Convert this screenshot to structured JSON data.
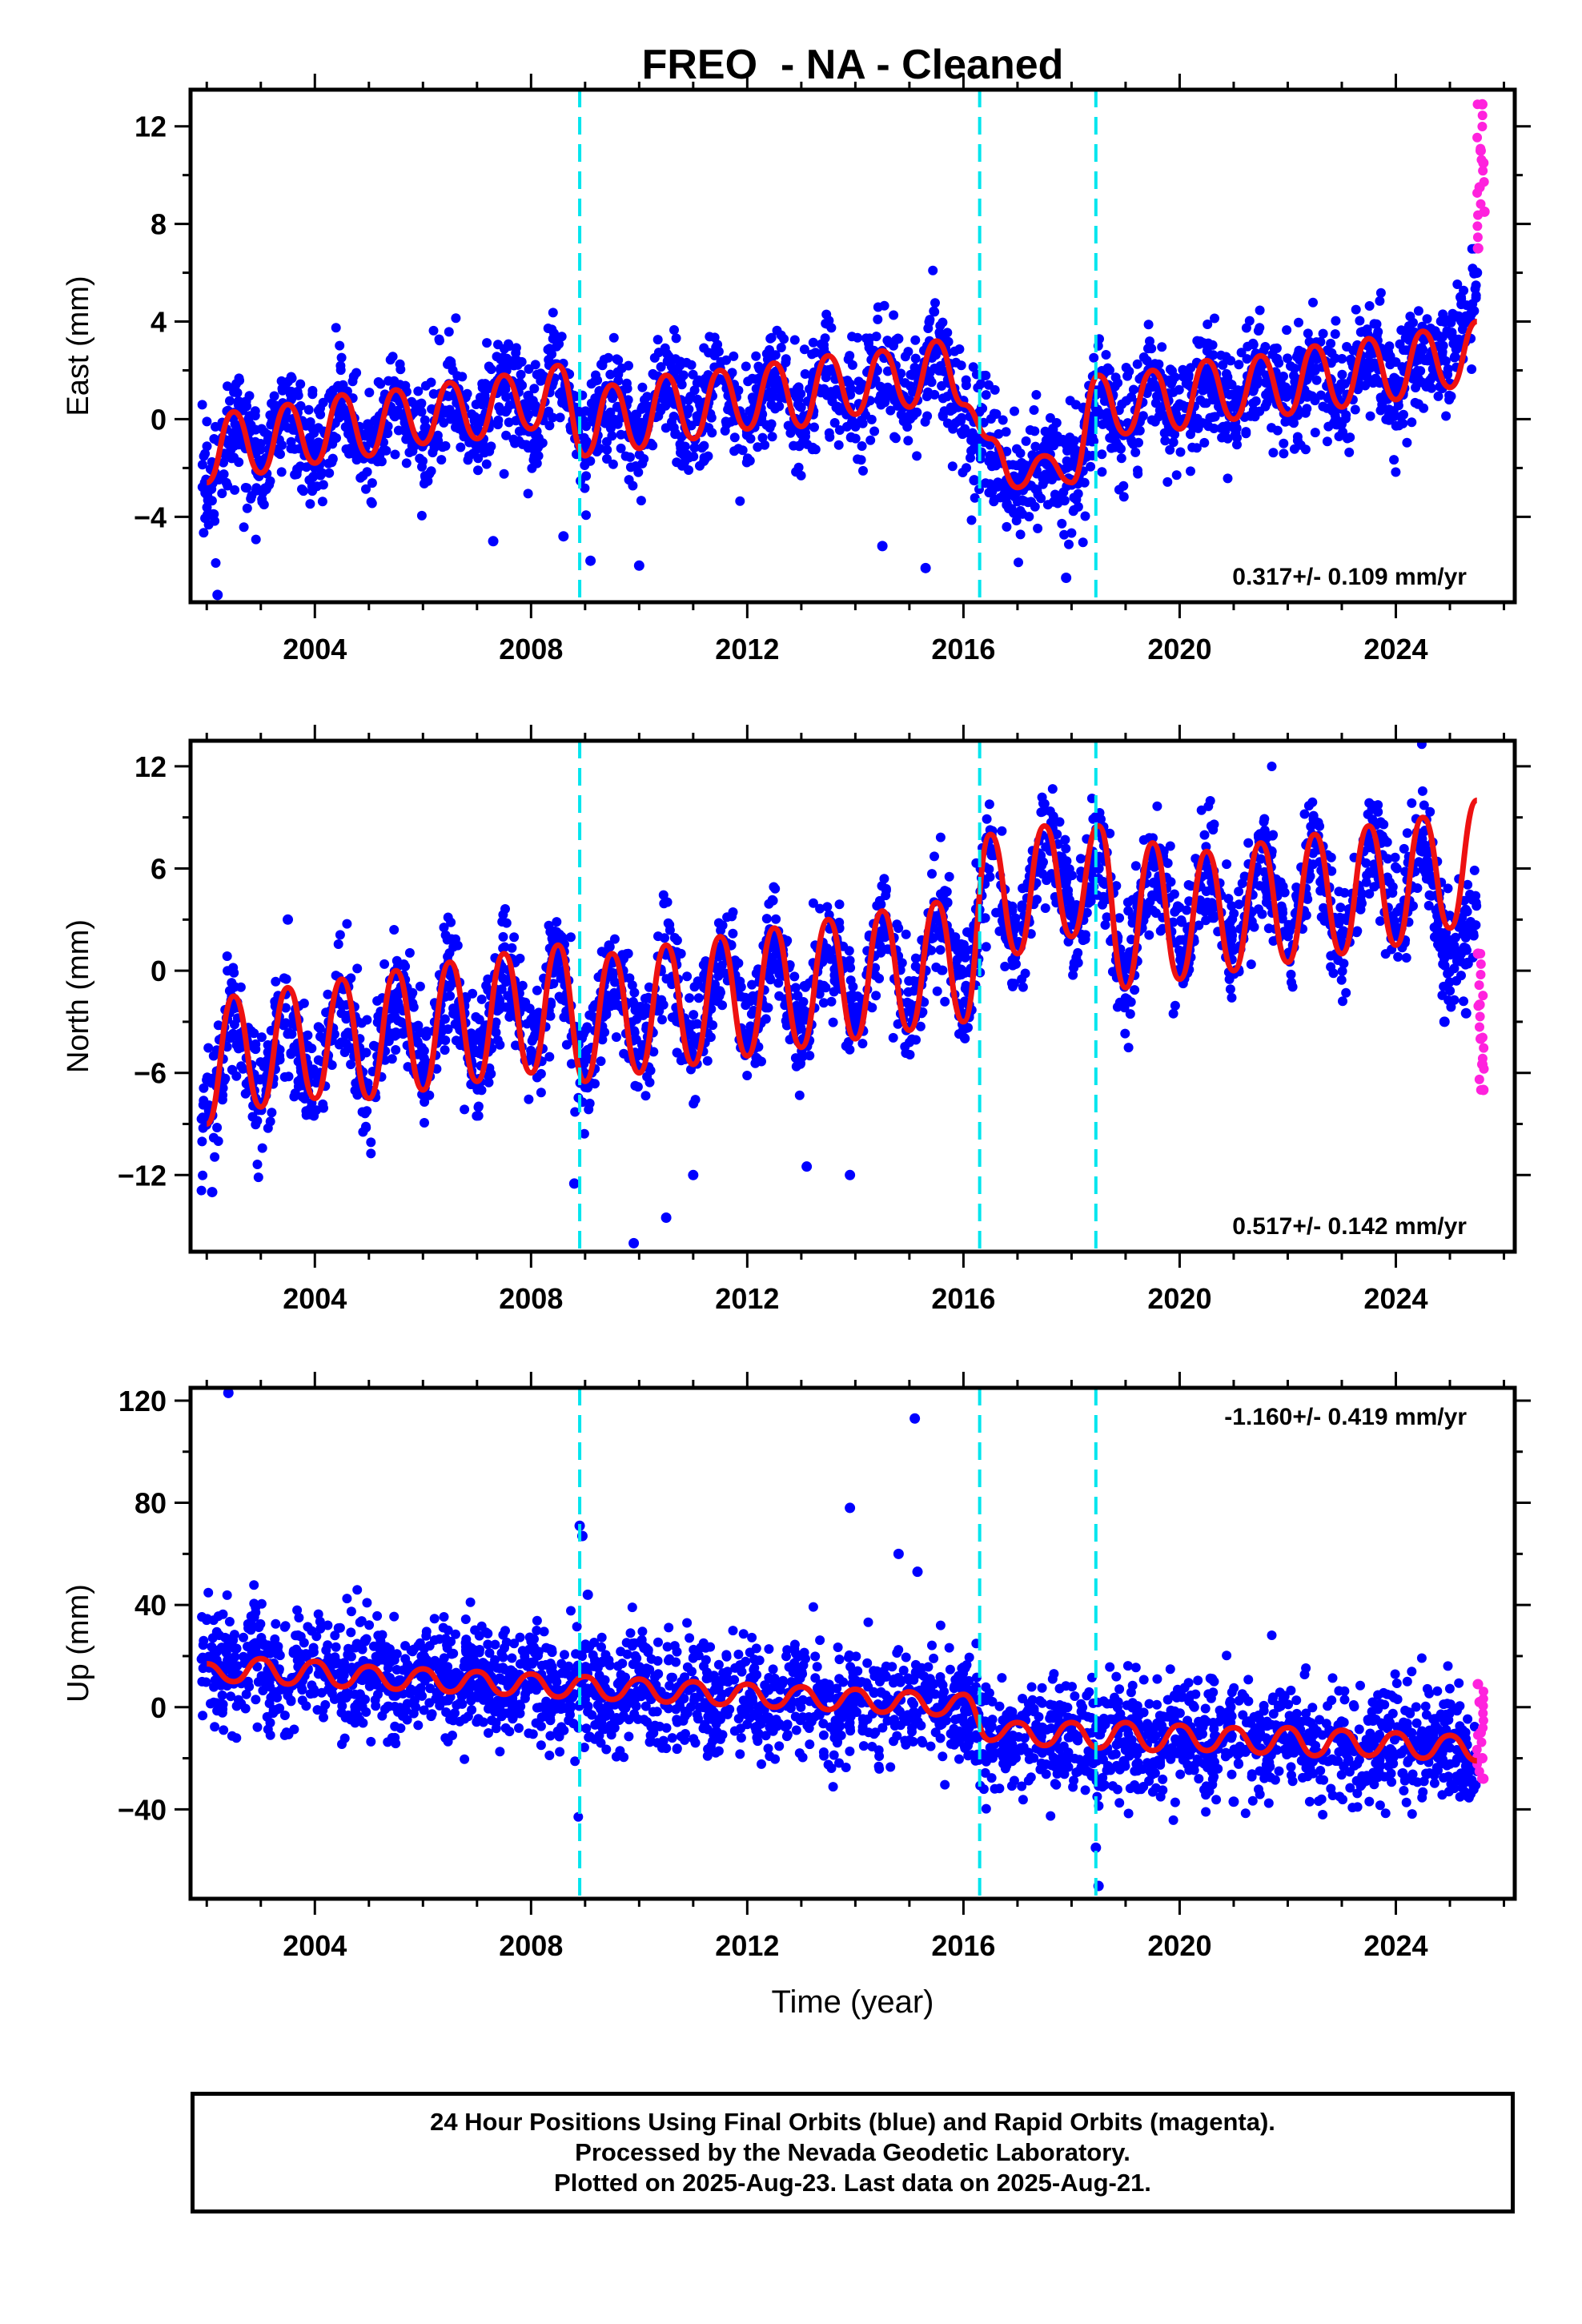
{
  "figure_title": "FREO  - NA - Cleaned",
  "x_axis_label": "Time (year)",
  "footer_lines": [
    "24 Hour Positions Using Final Orbits (blue) and Rapid Orbits (magenta).",
    "Processed by the Nevada Geodetic Laboratory.",
    "Plotted on 2025-Aug-23. Last data on 2025-Aug-21."
  ],
  "colors": {
    "final_orbits": "#0000ff",
    "rapid_orbits": "#ff22dd",
    "model_fit": "#ee1111",
    "equipment_change": "#00e5ee"
  },
  "chart_data": [
    {
      "type": "scatter",
      "title": "FREO  - NA - Cleaned",
      "ylabel": "East (mm)",
      "xlim": [
        2001.7,
        2026.2
      ],
      "ylim": [
        -7.5,
        13.5
      ],
      "yticks": [
        12,
        8,
        4,
        0,
        -4
      ],
      "ytick_labels": [
        "12",
        "8",
        "4",
        "0",
        "−4"
      ],
      "xticks": [
        2004,
        2008,
        2012,
        2016,
        2020,
        2024
      ],
      "xtick_labels": [
        "2004",
        "2008",
        "2012",
        "2016",
        "2020",
        "2024"
      ],
      "velocity_label": "0.317+/- 0.109 mm/yr",
      "velocity_label_position": "bottom-right",
      "equipment_changes": [
        2008.9,
        2016.3,
        2018.45
      ],
      "model_fit": {
        "x": [
          2002.0,
          2002.5,
          2003.0,
          2003.5,
          2004.0,
          2004.5,
          2005.0,
          2005.5,
          2006.0,
          2006.5,
          2007.0,
          2007.5,
          2008.0,
          2008.5,
          2009.0,
          2009.5,
          2010.0,
          2010.5,
          2011.0,
          2011.5,
          2012.0,
          2012.5,
          2013.0,
          2013.5,
          2014.0,
          2014.5,
          2015.0,
          2015.5,
          2016.0,
          2016.5,
          2017.0,
          2017.5,
          2018.0,
          2018.5,
          2019.0,
          2019.5,
          2020.0,
          2020.5,
          2021.0,
          2021.5,
          2022.0,
          2022.5,
          2023.0,
          2023.5,
          2024.0,
          2024.5,
          2025.0,
          2025.5
        ],
        "y": [
          -2.6,
          0.3,
          -2.2,
          0.6,
          -1.8,
          1.0,
          -1.5,
          1.2,
          -1.0,
          1.5,
          -0.8,
          1.8,
          -0.4,
          2.2,
          -1.5,
          1.4,
          -1.2,
          1.8,
          -0.8,
          2.0,
          -0.4,
          2.3,
          -0.3,
          2.6,
          0.2,
          2.8,
          0.5,
          3.2,
          0.6,
          -0.8,
          -2.8,
          -1.5,
          -2.6,
          1.8,
          -0.6,
          2.0,
          -0.4,
          2.4,
          0.0,
          2.6,
          0.2,
          3.0,
          0.5,
          3.3,
          0.8,
          3.6,
          1.3,
          4.0
        ]
      },
      "final_orbits": {
        "x": [
          2002.1,
          2002.4,
          2002.7,
          2003.0,
          2003.3,
          2003.6,
          2003.9,
          2004.2,
          2004.5,
          2004.8,
          2005.1,
          2005.4,
          2005.7,
          2006.0,
          2006.3,
          2006.6,
          2006.9,
          2007.2,
          2007.5,
          2007.8,
          2008.1,
          2008.4,
          2008.7,
          2009.0,
          2009.3,
          2009.6,
          2009.9,
          2010.2,
          2010.5,
          2010.8,
          2011.1,
          2011.4,
          2011.7,
          2012.0,
          2012.3,
          2012.6,
          2012.9,
          2013.2,
          2013.5,
          2013.8,
          2014.1,
          2014.4,
          2014.7,
          2015.0,
          2015.3,
          2015.6,
          2015.9,
          2016.2,
          2016.5,
          2016.8,
          2017.1,
          2017.4,
          2017.7,
          2018.0,
          2018.3,
          2018.6,
          2018.9,
          2019.2,
          2019.5,
          2019.8,
          2020.1,
          2020.4,
          2020.7,
          2021.0,
          2021.3,
          2021.6,
          2021.9,
          2022.2,
          2022.5,
          2022.8,
          2023.1,
          2023.4,
          2023.7,
          2024.0,
          2024.3,
          2024.6,
          2024.9,
          2025.2,
          2025.5
        ],
        "y": [
          -2.5,
          -1.0,
          -0.5,
          -2.0,
          -0.5,
          0.0,
          -1.5,
          -1.0,
          0.5,
          -1.5,
          -1.0,
          0.5,
          -0.5,
          -1.0,
          0.5,
          1.0,
          -0.5,
          0.0,
          1.5,
          0.0,
          -0.5,
          1.5,
          0.5,
          -1.0,
          0.5,
          0.5,
          -0.5,
          0.5,
          1.5,
          0.0,
          0.0,
          1.5,
          0.5,
          -0.5,
          1.0,
          1.5,
          0.0,
          1.0,
          2.0,
          0.5,
          0.5,
          2.0,
          1.0,
          0.5,
          2.0,
          2.0,
          0.5,
          -2.5,
          -1.5,
          -2.5,
          -2.0,
          -1.5,
          -2.0,
          -2.5,
          -1.5,
          1.0,
          -0.5,
          0.0,
          1.5,
          -0.5,
          0.0,
          1.5,
          1.0,
          0.5,
          1.5,
          1.5,
          0.5,
          1.0,
          2.0,
          1.0,
          1.0,
          2.0,
          1.5,
          1.0,
          2.5,
          1.5,
          4.0,
          5.0,
          6.0
        ],
        "outliers_x": [
          2002.2,
          2007.3,
          2008.6,
          2009.1,
          2010.0,
          2014.5,
          2015.3,
          2017.9
        ],
        "outliers_y": [
          -7.2,
          -5.0,
          -4.8,
          -5.8,
          -6.0,
          -5.2,
          -6.1,
          -6.5
        ]
      },
      "rapid_orbits": {
        "x": [
          2025.52,
          2025.55,
          2025.57,
          2025.6,
          2025.62,
          2025.64
        ],
        "y": [
          7.0,
          9.5,
          11.0,
          12.9,
          10.5,
          8.5
        ]
      }
    },
    {
      "type": "scatter",
      "ylabel": "North (mm)",
      "xlim": [
        2001.7,
        2026.2
      ],
      "ylim": [
        -16.5,
        13.5
      ],
      "yticks": [
        12,
        6,
        0,
        -6,
        -12
      ],
      "ytick_labels": [
        "12",
        "6",
        "0",
        "−6",
        "−12"
      ],
      "xticks": [
        2004,
        2008,
        2012,
        2016,
        2020,
        2024
      ],
      "xtick_labels": [
        "2004",
        "2008",
        "2012",
        "2016",
        "2020",
        "2024"
      ],
      "velocity_label": "0.517+/- 0.142 mm/yr",
      "velocity_label_position": "bottom-right",
      "equipment_changes": [
        2008.9,
        2016.3,
        2018.45
      ],
      "model_fit": {
        "x": [
          2002.0,
          2002.5,
          2003.0,
          2003.5,
          2004.0,
          2004.5,
          2005.0,
          2005.5,
          2006.0,
          2006.5,
          2007.0,
          2007.5,
          2008.0,
          2008.5,
          2009.0,
          2009.5,
          2010.0,
          2010.5,
          2011.0,
          2011.5,
          2012.0,
          2012.5,
          2013.0,
          2013.5,
          2014.0,
          2014.5,
          2015.0,
          2015.5,
          2016.0,
          2016.5,
          2017.0,
          2017.5,
          2018.0,
          2018.5,
          2019.0,
          2019.5,
          2020.0,
          2020.5,
          2021.0,
          2021.5,
          2022.0,
          2022.5,
          2023.0,
          2023.5,
          2024.0,
          2024.5,
          2025.0,
          2025.5
        ],
        "y": [
          -9.0,
          -1.5,
          -8.0,
          -1.0,
          -7.5,
          -0.5,
          -7.5,
          0.0,
          -7.0,
          0.5,
          -6.5,
          1.0,
          -6.0,
          1.5,
          -6.5,
          1.0,
          -6.0,
          1.5,
          -5.5,
          2.0,
          -5.0,
          2.5,
          -4.5,
          3.0,
          -4.0,
          3.5,
          -3.5,
          4.0,
          -3.0,
          8.0,
          1.0,
          8.5,
          2.0,
          8.5,
          -1.0,
          7.5,
          -0.5,
          7.0,
          0.0,
          7.5,
          0.5,
          8.0,
          1.0,
          8.5,
          1.5,
          9.0,
          2.5,
          10.0
        ]
      },
      "final_orbits": {
        "x": [
          2002.1,
          2002.5,
          2002.9,
          2003.3,
          2003.7,
          2004.1,
          2004.5,
          2004.9,
          2005.3,
          2005.7,
          2006.1,
          2006.5,
          2006.9,
          2007.3,
          2007.7,
          2008.1,
          2008.5,
          2008.9,
          2009.3,
          2009.7,
          2010.1,
          2010.5,
          2010.9,
          2011.3,
          2011.7,
          2012.1,
          2012.5,
          2012.9,
          2013.3,
          2013.7,
          2014.1,
          2014.5,
          2014.9,
          2015.3,
          2015.7,
          2016.1,
          2016.5,
          2016.9,
          2017.3,
          2017.7,
          2018.1,
          2018.5,
          2018.9,
          2019.3,
          2019.7,
          2020.1,
          2020.5,
          2020.9,
          2021.3,
          2021.7,
          2022.1,
          2022.5,
          2022.9,
          2023.3,
          2023.7,
          2024.1,
          2024.5,
          2024.9,
          2025.3
        ],
        "y": [
          -8.5,
          -2.0,
          -7.5,
          -2.5,
          -6.5,
          -6.0,
          -1.0,
          -6.5,
          -4.0,
          -1.0,
          -6.0,
          0.0,
          -5.5,
          -2.0,
          0.5,
          -5.0,
          1.0,
          -5.5,
          -2.0,
          0.0,
          -5.0,
          1.0,
          -4.5,
          -2.0,
          1.5,
          -4.0,
          2.0,
          -3.5,
          -1.0,
          2.5,
          -3.0,
          3.0,
          -2.5,
          0.0,
          4.0,
          -2.0,
          7.0,
          1.5,
          5.0,
          8.0,
          3.0,
          6.0,
          0.0,
          2.5,
          7.0,
          0.5,
          6.5,
          1.0,
          3.5,
          7.0,
          1.5,
          7.5,
          2.0,
          5.0,
          8.0,
          2.5,
          7.0,
          -3.0,
          -2.5
        ],
        "outliers_x": [
          2002.1,
          2003.5,
          2008.8,
          2009.9,
          2010.5,
          2011.0,
          2013.1,
          2013.9
        ],
        "outliers_y": [
          -13.0,
          3.0,
          -12.5,
          -16.0,
          -14.5,
          -12.0,
          -11.5,
          -12.0
        ]
      },
      "rapid_orbits": {
        "x": [
          2025.52,
          2025.55,
          2025.57,
          2025.6,
          2025.62
        ],
        "y": [
          1.0,
          -2.0,
          -4.0,
          -5.5,
          -7.0
        ]
      }
    },
    {
      "type": "scatter",
      "ylabel": "Up (mm)",
      "xlabel": "Time (year)",
      "xlim": [
        2001.7,
        2026.2
      ],
      "ylim": [
        -75,
        125
      ],
      "yticks": [
        120,
        80,
        40,
        0,
        -40
      ],
      "ytick_labels": [
        "120",
        "80",
        "40",
        "0",
        "−40"
      ],
      "xticks": [
        2004,
        2008,
        2012,
        2016,
        2020,
        2024
      ],
      "xtick_labels": [
        "2004",
        "2008",
        "2012",
        "2016",
        "2020",
        "2024"
      ],
      "velocity_label": "-1.160+/- 0.419 mm/yr",
      "velocity_label_position": "top-right",
      "equipment_changes": [
        2008.9,
        2016.3,
        2018.45
      ],
      "model_fit": {
        "x": [
          2002.0,
          2002.5,
          2003.0,
          2003.5,
          2004.0,
          2004.5,
          2005.0,
          2005.5,
          2006.0,
          2006.5,
          2007.0,
          2007.5,
          2008.0,
          2008.5,
          2009.0,
          2009.5,
          2010.0,
          2010.5,
          2011.0,
          2011.5,
          2012.0,
          2012.5,
          2013.0,
          2013.5,
          2014.0,
          2014.5,
          2015.0,
          2015.5,
          2016.0,
          2016.5,
          2017.0,
          2017.5,
          2018.0,
          2018.5,
          2019.0,
          2019.5,
          2020.0,
          2020.5,
          2021.0,
          2021.5,
          2022.0,
          2022.5,
          2023.0,
          2023.5,
          2024.0,
          2024.5,
          2025.0,
          2025.5
        ],
        "y": [
          17,
          10,
          19,
          9,
          18,
          8,
          16,
          7,
          15,
          6,
          14,
          5,
          13,
          4,
          12,
          3,
          11,
          2,
          10,
          1,
          9,
          0,
          8,
          -1,
          7,
          -2,
          6,
          -3,
          5,
          -13,
          -6,
          -15,
          -6,
          -16,
          -6,
          -17,
          -7,
          -17,
          -8,
          -18,
          -8,
          -19,
          -9,
          -19,
          -10,
          -20,
          -11,
          -21
        ]
      },
      "final_orbits": {
        "x": [
          2002.1,
          2002.5,
          2002.9,
          2003.3,
          2003.7,
          2004.1,
          2004.5,
          2004.9,
          2005.3,
          2005.7,
          2006.1,
          2006.5,
          2006.9,
          2007.3,
          2007.7,
          2008.1,
          2008.5,
          2008.9,
          2009.3,
          2009.7,
          2010.1,
          2010.5,
          2010.9,
          2011.3,
          2011.7,
          2012.1,
          2012.5,
          2012.9,
          2013.3,
          2013.7,
          2014.1,
          2014.5,
          2014.9,
          2015.3,
          2015.7,
          2016.1,
          2016.5,
          2016.9,
          2017.3,
          2017.7,
          2018.1,
          2018.5,
          2018.9,
          2019.3,
          2019.7,
          2020.1,
          2020.5,
          2020.9,
          2021.3,
          2021.7,
          2022.1,
          2022.5,
          2022.9,
          2023.3,
          2023.7,
          2024.1,
          2024.5,
          2024.9,
          2025.3
        ],
        "y": [
          20,
          15,
          25,
          12,
          20,
          15,
          10,
          18,
          12,
          10,
          16,
          8,
          14,
          10,
          6,
          12,
          5,
          10,
          8,
          3,
          10,
          4,
          8,
          2,
          6,
          8,
          0,
          6,
          4,
          -2,
          5,
          0,
          -4,
          3,
          -2,
          -8,
          -12,
          -18,
          -10,
          -15,
          -12,
          -20,
          -8,
          -16,
          -10,
          -14,
          -18,
          -10,
          -16,
          -14,
          -12,
          -20,
          -12,
          -16,
          -12,
          -18,
          -14,
          -16,
          -20
        ],
        "outliers_x": [
          2002.4,
          2008.9,
          2008.95,
          2009.05,
          2013.9,
          2014.8,
          2015.1,
          2015.15,
          2018.45,
          2018.5,
          2020.6,
          2021.0
        ],
        "outliers_y": [
          123,
          71,
          67,
          44,
          78,
          60,
          113,
          53,
          -55,
          -70,
          11,
          -37
        ]
      },
      "rapid_orbits": {
        "x": [
          2025.52,
          2025.55,
          2025.57,
          2025.6,
          2025.62
        ],
        "y": [
          9,
          2,
          -10,
          -20,
          -28
        ]
      }
    }
  ]
}
